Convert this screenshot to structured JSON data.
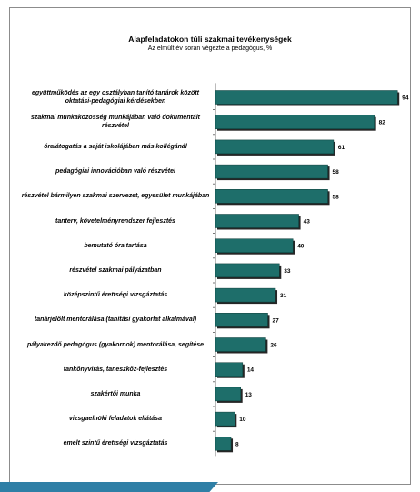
{
  "chart_data": {
    "type": "bar",
    "orientation": "horizontal",
    "title": "Alapfeladatokon túli szakmai tevékenységek",
    "subtitle": "Az elmúlt év során végezte a pedagógus, %",
    "xlim": [
      0,
      100
    ],
    "bar_color": "#1e6e6a",
    "categories": [
      "együttműködés az egy osztályban tanító tanárok között oktatási-pedagógiai kérdésekben",
      "szakmai munkaközösség munkájában való dokumentált részvétel",
      "óralátogatás a saját iskolájában más kollégánál",
      "pedagógiai innovációban való részvétel",
      "részvétel bármilyen szakmai szervezet, egyesület munkájában",
      "tanterv, követelményrendszer fejlesztés",
      "bemutató óra tartása",
      "részvétel szakmai pályázatban",
      "középszintű érettségi vizsgáztatás",
      "tanárjelölt mentorálása (tanítási gyakorlat alkalmával)",
      "pályakezdő pedagógus (gyakornok) mentorálása, segítése",
      "tankönyvírás, taneszköz-fejlesztés",
      "szakértői munka",
      "vizsgaelnöki feladatok ellátása",
      "emelt szintű érettségi vizsgáztatás"
    ],
    "values": [
      94,
      82,
      61,
      58,
      58,
      43,
      40,
      33,
      31,
      27,
      26,
      14,
      13,
      10,
      8
    ]
  }
}
